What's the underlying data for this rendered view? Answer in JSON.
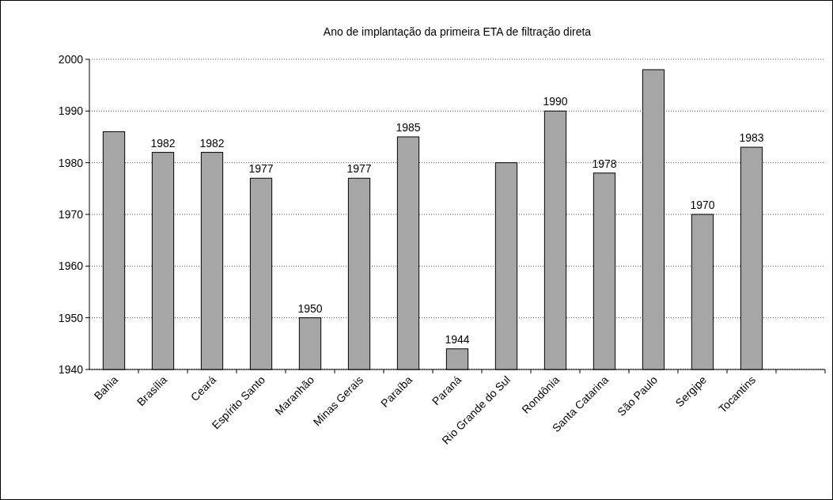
{
  "chart_data": {
    "type": "bar",
    "title": "Ano de implantação da primeira ETA de filtração direta",
    "categories": [
      "Bahia",
      "Brasília",
      "Ceará",
      "Espírito Santo",
      "Maranhão",
      "Minas Gerais",
      "Paraíba",
      "Paraná",
      "Rio Grande do Sul",
      "Rondônia",
      "Santa Catarina",
      "São Paulo",
      "Sergipe",
      "Tocantins",
      null
    ],
    "values": [
      1986,
      1982,
      1982,
      1977,
      1950,
      1977,
      1985,
      1944,
      1980,
      1990,
      1978,
      1998,
      1970,
      1983,
      null
    ],
    "value_labels": [
      null,
      "1982",
      "1982",
      "1977",
      "1950",
      "1977",
      "1985",
      "1944",
      null,
      "1990",
      "1978",
      null,
      "1970",
      "1983",
      null
    ],
    "color": "#a6a6a6",
    "ylim": [
      1940,
      2000
    ],
    "yticks": [
      1940,
      1950,
      1960,
      1970,
      1980,
      1990,
      2000
    ],
    "grid": "y"
  }
}
